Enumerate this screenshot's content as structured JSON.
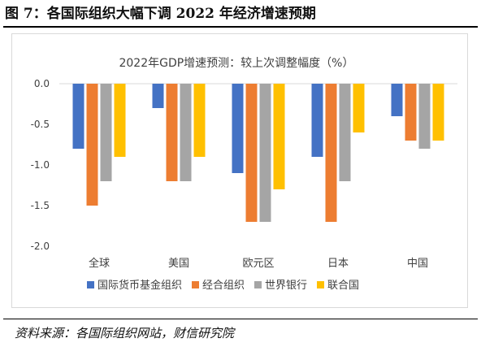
{
  "figure": {
    "title": "图 7：各国际组织大幅下调 2022 年经济增速预期",
    "source": "资料来源：各国际组织网站，财信研究院"
  },
  "chart_data": {
    "type": "bar",
    "title": "2022年GDP增速预测：较上次调整幅度（%）",
    "categories": [
      "全球",
      "美国",
      "欧元区",
      "日本",
      "中国"
    ],
    "series": [
      {
        "name": "国际货币基金组织",
        "color": "#4472C4",
        "values": [
          -0.8,
          -0.3,
          -1.1,
          -0.9,
          -0.4
        ]
      },
      {
        "name": "经合组织",
        "color": "#ED7D31",
        "values": [
          -1.5,
          -1.2,
          -1.7,
          -1.7,
          -0.7
        ]
      },
      {
        "name": "世界银行",
        "color": "#A5A5A5",
        "values": [
          -1.2,
          -1.2,
          -1.7,
          -1.2,
          -0.8
        ]
      },
      {
        "name": "联合国",
        "color": "#FFC000",
        "values": [
          -0.9,
          -0.9,
          -1.3,
          -0.6,
          -0.7
        ]
      }
    ],
    "yticks": [
      "0.0",
      "-0.5",
      "-1.0",
      "-1.5",
      "-2.0"
    ],
    "ylim": [
      -2.0,
      0.0
    ],
    "grid": false,
    "legend_position": "bottom"
  }
}
